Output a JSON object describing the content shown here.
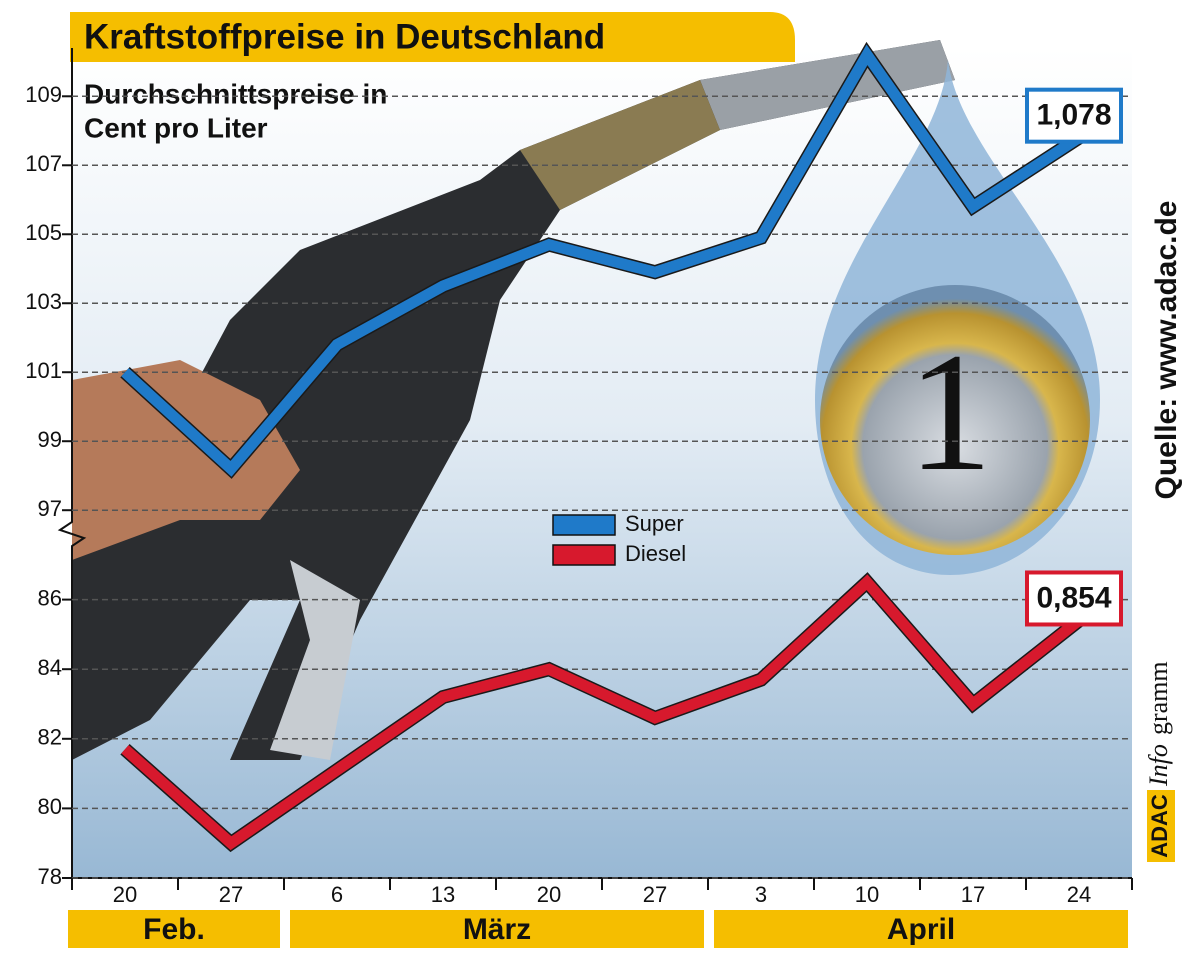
{
  "chart_data": {
    "type": "line",
    "title": "Kraftstoffpreise in Deutschland",
    "subtitle": [
      "Durchschnittspreise in",
      "Cent pro Liter"
    ],
    "source": "Quelle: www.adac.de",
    "credit": [
      "ADAC",
      "Info",
      "gramm"
    ],
    "categories": [
      "20",
      "27",
      "6",
      "13",
      "20",
      "27",
      "3",
      "10",
      "17",
      "24"
    ],
    "months": [
      "Feb.",
      "März",
      "April"
    ],
    "series": [
      {
        "name": "Super",
        "color": "#1f7ac9",
        "axis": "y2",
        "values": [
          101.0,
          98.2,
          101.8,
          103.5,
          104.7,
          103.9,
          104.9,
          110.2,
          105.8,
          107.8
        ],
        "value_labels": [
          null,
          null,
          null,
          null,
          null,
          null,
          null,
          null,
          null,
          "1,078"
        ]
      },
      {
        "name": "Diesel",
        "color": "#d7192d",
        "values": [
          81.7,
          79.0,
          81.1,
          83.2,
          84.0,
          82.6,
          83.7,
          86.5,
          83.0,
          85.4
        ],
        "value_labels": [
          null,
          null,
          null,
          null,
          null,
          null,
          null,
          null,
          null,
          "0,854"
        ]
      }
    ],
    "ylim": [
      78,
      88
    ],
    "yticks": [
      78,
      80,
      82,
      84,
      86
    ],
    "y2lim": [
      96.6,
      110.4
    ],
    "y2ticks": [
      97,
      99,
      101,
      103,
      105,
      107,
      109
    ],
    "grid": true
  }
}
